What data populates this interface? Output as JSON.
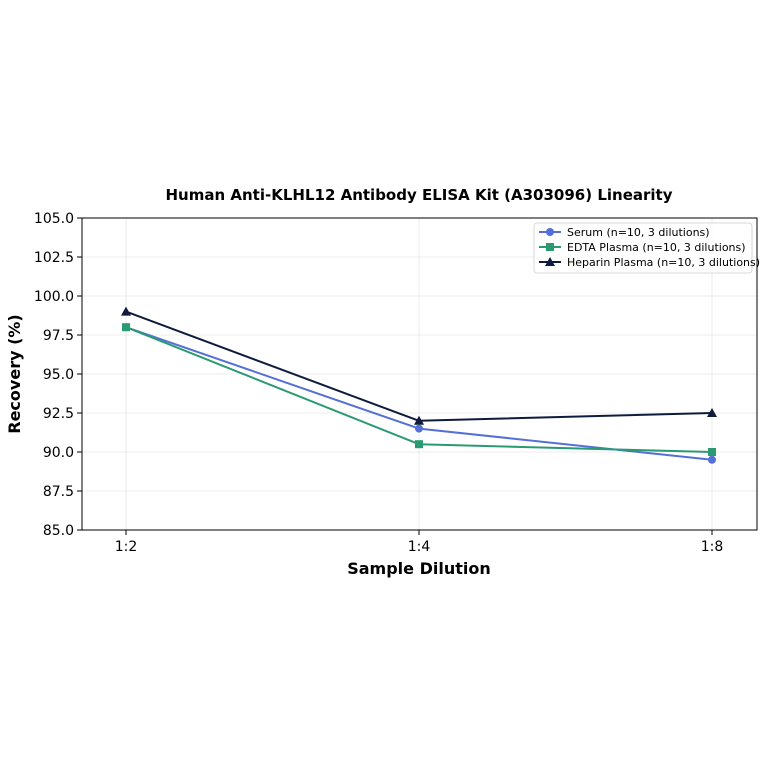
{
  "chart_data": {
    "type": "line",
    "title": "Human Anti-KLHL12 Antibody ELISA Kit (A303096) Linearity",
    "xlabel": "Sample Dilution",
    "ylabel": "Recovery (%)",
    "categories": [
      "1:2",
      "1:4",
      "1:8"
    ],
    "ylim": [
      85.0,
      105.0
    ],
    "yticks": [
      "85.0",
      "87.5",
      "90.0",
      "92.5",
      "95.0",
      "97.5",
      "100.0",
      "102.5",
      "105.0"
    ],
    "grid": true,
    "legend_position": "top-right",
    "series": [
      {
        "name": "Serum (n=10, 3 dilutions)",
        "values": [
          98.0,
          91.5,
          89.5
        ],
        "color": "#5470d6",
        "marker": "circle"
      },
      {
        "name": "EDTA Plasma (n=10, 3 dilutions)",
        "values": [
          98.0,
          90.5,
          90.0
        ],
        "color": "#2a9a72",
        "marker": "square"
      },
      {
        "name": "Heparin Plasma (n=10, 3 dilutions)",
        "values": [
          99.0,
          92.0,
          92.5
        ],
        "color": "#0f1b3d",
        "marker": "triangle"
      }
    ]
  }
}
